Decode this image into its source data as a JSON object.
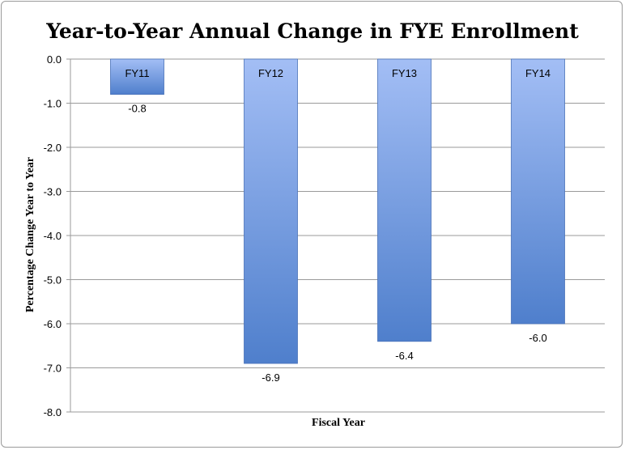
{
  "chart_data": {
    "type": "bar",
    "title": "Year-to-Year Annual Change in FYE Enrollment",
    "xlabel": "Fiscal Year",
    "ylabel": "Percentage Change Year to Year",
    "categories": [
      "FY11",
      "FY12",
      "FY13",
      "FY14"
    ],
    "values": [
      -0.8,
      -6.9,
      -6.4,
      -6.0
    ],
    "data_labels": [
      "-0.8",
      "-6.9",
      "-6.4",
      "-6.0"
    ],
    "ylim": [
      -8.0,
      0.0
    ],
    "yticks": [
      "0.0",
      "-1.0",
      "-2.0",
      "-3.0",
      "-4.0",
      "-5.0",
      "-6.0",
      "-7.0",
      "-8.0"
    ],
    "grid": true,
    "legend": "none",
    "colors": {
      "bar_top": "#a3bef5",
      "bar_bottom": "#4f7fcc",
      "bar_edge": "#4a72b8",
      "grid": "#9a9a9a"
    }
  }
}
